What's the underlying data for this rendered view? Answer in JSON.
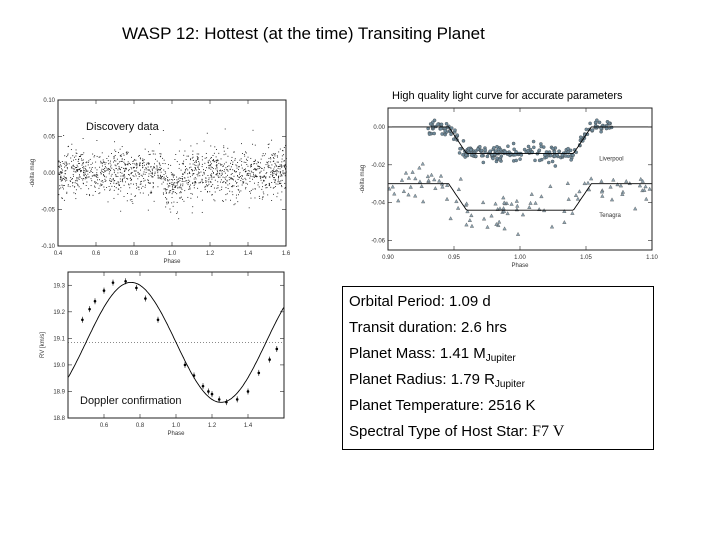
{
  "title": "WASP 12: Hottest (at the time) Transiting Planet",
  "hq_caption": "High quality light curve for accurate parameters",
  "properties": {
    "period_label": "Orbital Period:",
    "period_value": "1.09 d",
    "duration_label": "Transit duration:",
    "duration_value": "2.6 hrs",
    "mass_label": "Planet Mass: 1.41 M",
    "mass_sub": "Jupiter",
    "radius_label": "Planet Radius: 1.79 R",
    "radius_sub": "Jupiter",
    "temp_label": "Planet Temperature:",
    "temp_value": "2516 K",
    "spectral_label": "Spectral Type of Host Star:",
    "spectral_value": "F7 V"
  },
  "chart_data": [
    {
      "type": "scatter",
      "name": "discovery",
      "annotation": "Discovery data",
      "xlabel": "Phase",
      "ylabel": "-delta mag",
      "xlim": [
        0.4,
        1.6
      ],
      "ylim": [
        -0.1,
        0.1
      ],
      "xticks": [
        "0.4",
        "0.6",
        "0.8",
        "1.0",
        "1.2",
        "1.4",
        "1.6"
      ],
      "yticks": [
        "0.10",
        "0.05",
        "0.00",
        "-0.05",
        "-0.10"
      ],
      "transit_center": 1.0,
      "transit_depth": 0.014,
      "transit_half_width": 0.06,
      "scatter_sigma": 0.016,
      "n_points": 1500
    },
    {
      "type": "scatter",
      "name": "high-quality",
      "xlabel": "Phase",
      "ylabel": "-delta mag",
      "xlim": [
        0.9,
        1.1
      ],
      "ylim": [
        -0.065,
        0.01
      ],
      "xticks": [
        "0.90",
        "0.95",
        "1.00",
        "1.05",
        "1.10"
      ],
      "yticks": [
        "0.00",
        "-0.02",
        "-0.04",
        "-0.06"
      ],
      "series": [
        {
          "name": "Liverpool",
          "offset": 0.0,
          "depth": 0.014,
          "sigma": 0.002,
          "n": 260
        },
        {
          "name": "Tenagra",
          "offset": -0.03,
          "depth": 0.014,
          "sigma": 0.005,
          "n": 110
        }
      ],
      "transit_center": 1.0,
      "transit_half_width": 0.054
    },
    {
      "type": "scatter",
      "name": "doppler",
      "annotation": "Doppler confirmation",
      "xlabel": "Phase",
      "ylabel": "RV [km/s]",
      "xlim": [
        0.4,
        1.6
      ],
      "ylim": [
        18.8,
        19.35
      ],
      "xticks": [
        "0.6",
        "0.8",
        "1.0",
        "1.2",
        "1.4"
      ],
      "yticks": [
        "19.3",
        "19.2",
        "19.1",
        "19.0",
        "18.9",
        "18.8"
      ],
      "systemic_velocity": 19.085,
      "semi_amplitude": 0.226,
      "phase_zero": 1.0,
      "points": [
        [
          0.48,
          19.17
        ],
        [
          0.52,
          19.21
        ],
        [
          0.55,
          19.24
        ],
        [
          0.6,
          19.28
        ],
        [
          0.65,
          19.31
        ],
        [
          0.72,
          19.315
        ],
        [
          0.78,
          19.29
        ],
        [
          0.83,
          19.25
        ],
        [
          0.9,
          19.17
        ],
        [
          1.05,
          19.0
        ],
        [
          1.1,
          18.96
        ],
        [
          1.15,
          18.92
        ],
        [
          1.18,
          18.9
        ],
        [
          1.2,
          18.89
        ],
        [
          1.24,
          18.87
        ],
        [
          1.28,
          18.86
        ],
        [
          1.34,
          18.87
        ],
        [
          1.4,
          18.9
        ],
        [
          1.46,
          18.97
        ],
        [
          1.52,
          19.02
        ],
        [
          1.56,
          19.06
        ]
      ]
    }
  ]
}
